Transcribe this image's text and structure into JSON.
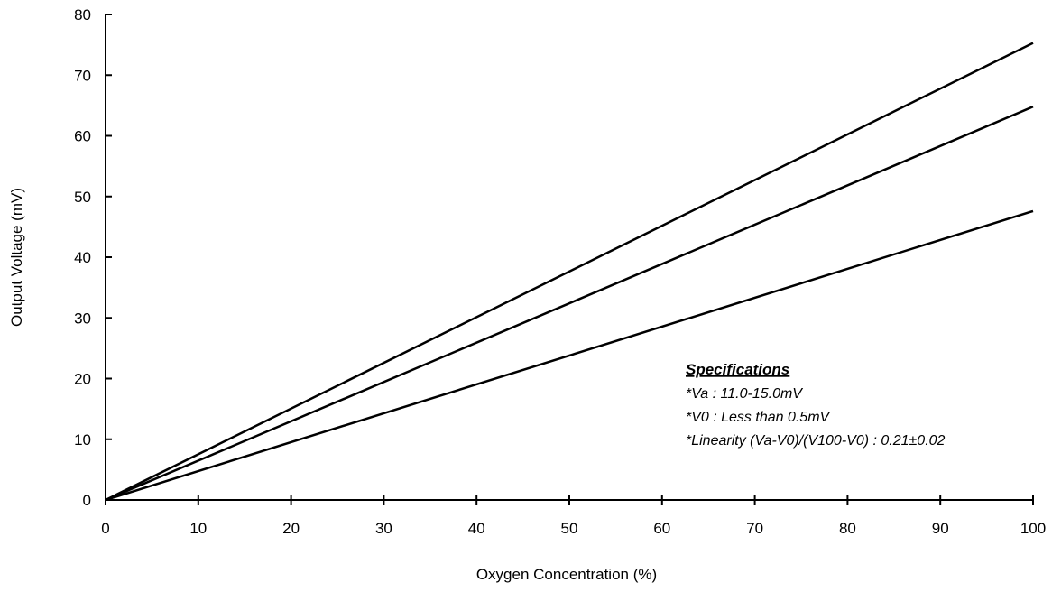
{
  "chart_data": {
    "type": "line",
    "title": "",
    "xlabel": "Oxygen Concentration (%)",
    "ylabel": "Output Voltage (mV)",
    "xlim": [
      0,
      100
    ],
    "ylim": [
      0,
      80
    ],
    "xticks": [
      "0",
      "10",
      "20",
      "30",
      "40",
      "50",
      "60",
      "70",
      "80",
      "90",
      "100"
    ],
    "yticks": [
      "0",
      "10",
      "20",
      "30",
      "40",
      "50",
      "60",
      "70",
      "80"
    ],
    "grid": false,
    "legend": "none",
    "series": [
      {
        "x": [
          0,
          100
        ],
        "y": [
          0,
          75.3
        ]
      },
      {
        "x": [
          0,
          100
        ],
        "y": [
          0,
          64.8
        ]
      },
      {
        "x": [
          0,
          100
        ],
        "y": [
          0,
          47.6
        ]
      }
    ],
    "annotation": {
      "title": "Specifications",
      "lines": [
        "*Va : 11.0-15.0mV",
        "*V0 : Less than 0.5mV",
        "*Linearity (Va-V0)/(V100-V0) : 0.21±0.02"
      ]
    }
  }
}
